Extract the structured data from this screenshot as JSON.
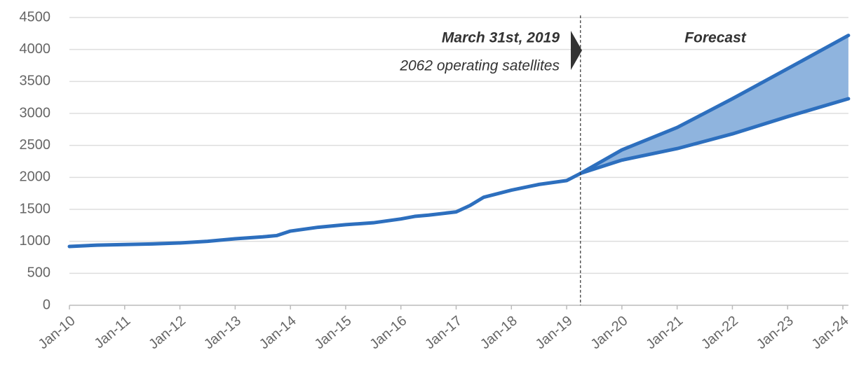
{
  "chart_data": {
    "type": "line",
    "xlim": [
      2010,
      2024.1
    ],
    "ylim": [
      0,
      4500
    ],
    "yticks": [
      0,
      500,
      1000,
      1500,
      2000,
      2500,
      3000,
      3500,
      4000,
      4500
    ],
    "xticks": [
      {
        "value": 2010,
        "label": "Jan-10"
      },
      {
        "value": 2011,
        "label": "Jan-11"
      },
      {
        "value": 2012,
        "label": "Jan-12"
      },
      {
        "value": 2013,
        "label": "Jan-13"
      },
      {
        "value": 2014,
        "label": "Jan-14"
      },
      {
        "value": 2015,
        "label": "Jan-15"
      },
      {
        "value": 2016,
        "label": "Jan-16"
      },
      {
        "value": 2017,
        "label": "Jan-17"
      },
      {
        "value": 2018,
        "label": "Jan-18"
      },
      {
        "value": 2019,
        "label": "Jan-19"
      },
      {
        "value": 2020,
        "label": "Jan-20"
      },
      {
        "value": 2021,
        "label": "Jan-21"
      },
      {
        "value": 2022,
        "label": "Jan-22"
      },
      {
        "value": 2023,
        "label": "Jan-23"
      },
      {
        "value": 2024,
        "label": "Jan-24"
      }
    ],
    "grid": true,
    "band_color": "#8fb4de",
    "series": [
      {
        "color": "#2d6fbe",
        "x": [
          2010,
          2010.5,
          2011,
          2011.5,
          2012,
          2012.5,
          2013,
          2013.5,
          2013.75,
          2014,
          2014.5,
          2015,
          2015.5,
          2016,
          2016.25,
          2016.5,
          2017,
          2017.25,
          2017.5,
          2018,
          2018.5,
          2019,
          2019.25
        ],
        "values": [
          920,
          940,
          950,
          960,
          975,
          1000,
          1040,
          1070,
          1090,
          1160,
          1220,
          1260,
          1290,
          1350,
          1390,
          1410,
          1460,
          1560,
          1690,
          1800,
          1890,
          1950,
          2062
        ]
      },
      {
        "color": "#2d6fbe",
        "x": [
          2019.25,
          2020,
          2021,
          2022,
          2023,
          2024.1
        ],
        "values": [
          2062,
          2430,
          2780,
          3230,
          3700,
          4220
        ]
      },
      {
        "color": "#2d6fbe",
        "x": [
          2019.25,
          2020,
          2021,
          2022,
          2023,
          2024.1
        ],
        "values": [
          2062,
          2270,
          2450,
          2680,
          2950,
          3230
        ]
      }
    ],
    "annotations": {
      "event_x": 2019.25,
      "date": "March 31st, 2019",
      "note": "2062 operating satellites",
      "forecast": "Forecast"
    }
  }
}
